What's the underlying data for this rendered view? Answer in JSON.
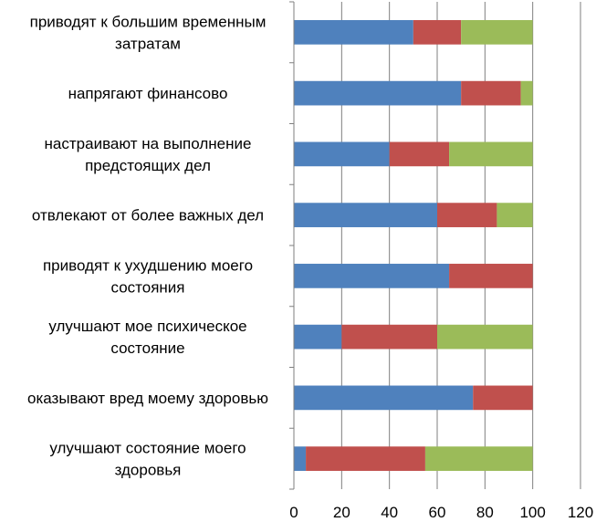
{
  "chart_data": {
    "type": "bar",
    "orientation": "horizontal",
    "stacked": true,
    "categories": [
      [
        "приводят к большим временным",
        "затратам"
      ],
      [
        "напрягают финансово"
      ],
      [
        "настраивают на выполнение",
        "предстоящих дел"
      ],
      [
        "отвлекают  от более важных дел"
      ],
      [
        "приводят к ухудшению  моего",
        "состояния"
      ],
      [
        "улучшают мое  психическое",
        "состояние"
      ],
      [
        "оказывают  вред моему здоровью"
      ],
      [
        "улучшают  состояние моего",
        "здоровья"
      ]
    ],
    "series": [
      {
        "color": "#4f81bd",
        "values": [
          50,
          70,
          40,
          60,
          65,
          20,
          75,
          5
        ]
      },
      {
        "color": "#c0504d",
        "values": [
          20,
          25,
          25,
          25,
          35,
          40,
          25,
          50
        ]
      },
      {
        "color": "#9bbb59",
        "values": [
          30,
          5,
          35,
          15,
          0,
          40,
          0,
          45
        ]
      }
    ],
    "xlim": [
      0,
      120
    ],
    "xticks": [
      "0",
      "20",
      "40",
      "60",
      "80",
      "100",
      "120"
    ],
    "grid": true,
    "legend": "none"
  }
}
